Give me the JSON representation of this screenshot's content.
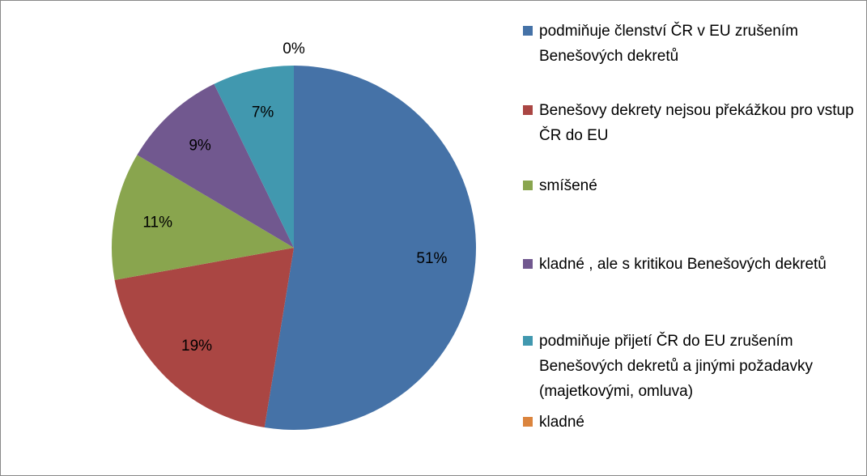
{
  "chart_data": {
    "type": "pie",
    "categories": [
      "podmiňuje členství ČR v EU zrušením Benešových dekretů",
      "Benešovy dekrety nejsou překážkou pro vstup ČR do EU",
      "smíšené",
      "kladné , ale s kritikou Benešových dekretů",
      "podmiňuje přijetí ČR do EU zrušením Benešových dekretů a jinými požadavky (majetkovými, omluva)",
      "kladné"
    ],
    "values": [
      51,
      19,
      11,
      9,
      7,
      0
    ],
    "value_labels": [
      "51%",
      "19%",
      "11%",
      "9%",
      "7%",
      "0%"
    ],
    "colors": [
      "#4572a7",
      "#aa4643",
      "#89a54e",
      "#71588f",
      "#4198af",
      "#db843d"
    ],
    "legend": "right"
  }
}
